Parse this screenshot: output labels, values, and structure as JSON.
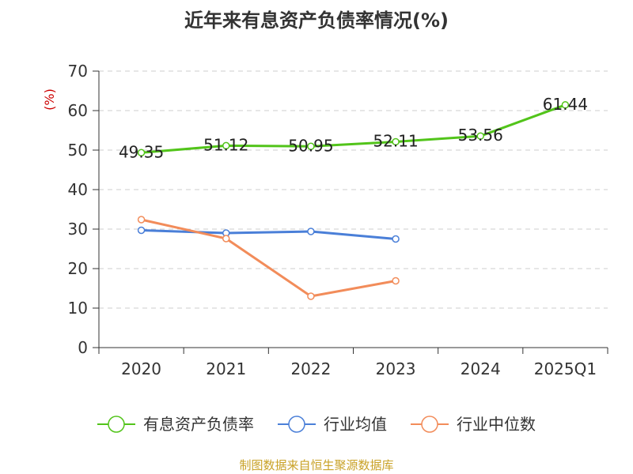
{
  "chart_data": {
    "type": "line",
    "title": "近年来有息资产负债率情况(%)",
    "unit_label": "(%)",
    "categories": [
      "2020",
      "2021",
      "2022",
      "2023",
      "2024",
      "2025Q1"
    ],
    "ylim": [
      0,
      70
    ],
    "yticks": [
      0,
      10,
      20,
      30,
      40,
      50,
      60,
      70
    ],
    "grid": true,
    "legend_position": "bottom",
    "series": [
      {
        "name": "有息资产负债率",
        "color": "#52c41a",
        "values": [
          49.35,
          51.12,
          50.95,
          52.11,
          53.56,
          61.44
        ],
        "labels": [
          "49.35",
          "51.12",
          "50.95",
          "52.11",
          "53.56",
          "61.44"
        ],
        "show_labels": true
      },
      {
        "name": "行业均值",
        "color": "#4a7fd8",
        "values": [
          29.7,
          29.0,
          29.4,
          27.5,
          null,
          null
        ],
        "show_labels": false
      },
      {
        "name": "行业中位数",
        "color": "#f28c5a",
        "values": [
          32.4,
          27.6,
          13.0,
          16.9,
          null,
          null
        ],
        "show_labels": false
      }
    ],
    "source": "制图数据来自恒生聚源数据库"
  }
}
